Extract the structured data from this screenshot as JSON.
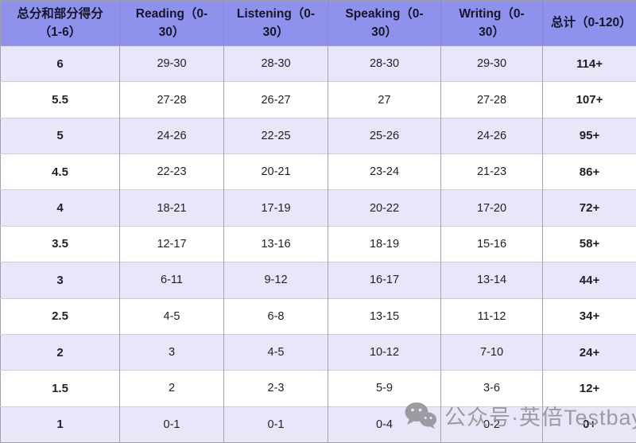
{
  "chart_data": {
    "type": "table",
    "columns": [
      "总分和部分得分（1-6）",
      "Reading（0-30）",
      "Listening（0-30）",
      "Speaking（0-30）",
      "Writing（0-30）",
      "总计（0-120）"
    ],
    "rows": [
      [
        "6",
        "29-30",
        "28-30",
        "28-30",
        "29-30",
        "114+"
      ],
      [
        "5.5",
        "27-28",
        "26-27",
        "27",
        "27-28",
        "107+"
      ],
      [
        "5",
        "24-26",
        "22-25",
        "25-26",
        "24-26",
        "95+"
      ],
      [
        "4.5",
        "22-23",
        "20-21",
        "23-24",
        "21-23",
        "86+"
      ],
      [
        "4",
        "18-21",
        "17-19",
        "20-22",
        "17-20",
        "72+"
      ],
      [
        "3.5",
        "12-17",
        "13-16",
        "18-19",
        "15-16",
        "58+"
      ],
      [
        "3",
        "6-11",
        "9-12",
        "16-17",
        "13-14",
        "44+"
      ],
      [
        "2.5",
        "4-5",
        "6-8",
        "13-15",
        "11-12",
        "34+"
      ],
      [
        "2",
        "3",
        "4-5",
        "10-12",
        "7-10",
        "24+"
      ],
      [
        "1.5",
        "2",
        "2-3",
        "5-9",
        "3-6",
        "12+"
      ],
      [
        "1",
        "0-1",
        "0-1",
        "0-4",
        "0-2",
        "0+"
      ]
    ],
    "layout_hints": {
      "header_style": "bold purple band",
      "row_striping": "odd rows lavender, even rows white",
      "bold_columns": [
        "first",
        "last"
      ]
    }
  },
  "watermark": {
    "icon": "wechat-icon",
    "text": "公众号·英倍Testbay"
  },
  "colors": {
    "header_bg": "#8e92ec",
    "header_text": "#16162a",
    "row_alt_bg": "#e7e7f9",
    "row_bg": "#ffffff",
    "vertical_border": "#a2a3ad",
    "horizontal_border": "#cdcdd8",
    "cell_text": "#1f1f28",
    "watermark_gray": "#9b9ba2"
  }
}
